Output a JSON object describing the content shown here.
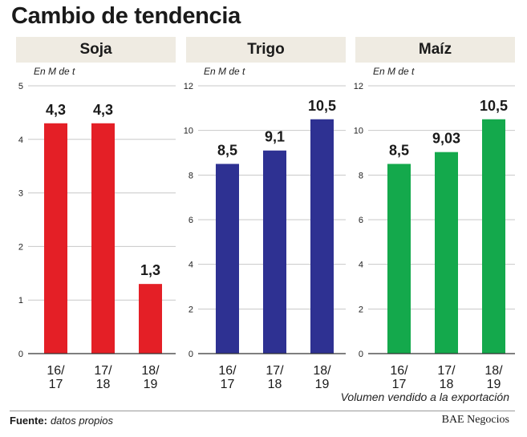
{
  "title": "Cambio de tendencia",
  "footnote": "Volumen vendido a la exportación",
  "source_label": "Fuente:",
  "source_text": "datos propios",
  "credit": "BAE Negocios",
  "chart_data": [
    {
      "type": "bar",
      "title": "Soja",
      "ylabel": "En M de t",
      "ylim": [
        0,
        5
      ],
      "yticks": [
        0,
        1,
        2,
        3,
        4,
        5
      ],
      "categories": [
        "16/\n17",
        "17/\n18",
        "18/\n19"
      ],
      "values": [
        4.3,
        4.3,
        1.3
      ],
      "value_labels": [
        "4,3",
        "4,3",
        "1,3"
      ],
      "color": "#e41f26"
    },
    {
      "type": "bar",
      "title": "Trigo",
      "ylabel": "En M de t",
      "ylim": [
        0,
        12
      ],
      "yticks": [
        0,
        2,
        4,
        6,
        8,
        10,
        12
      ],
      "categories": [
        "16/\n17",
        "17/\n18",
        "18/\n19"
      ],
      "values": [
        8.5,
        9.1,
        10.5
      ],
      "value_labels": [
        "8,5",
        "9,1",
        "10,5"
      ],
      "color": "#2e3192"
    },
    {
      "type": "bar",
      "title": "Maíz",
      "ylabel": "En M de t",
      "ylim": [
        0,
        12
      ],
      "yticks": [
        0,
        2,
        4,
        6,
        8,
        10,
        12
      ],
      "categories": [
        "16/\n17",
        "17/\n18",
        "18/\n19"
      ],
      "values": [
        8.5,
        9.03,
        10.5
      ],
      "value_labels": [
        "8,5",
        "9,03",
        "10,5"
      ],
      "color": "#14a94c"
    }
  ]
}
